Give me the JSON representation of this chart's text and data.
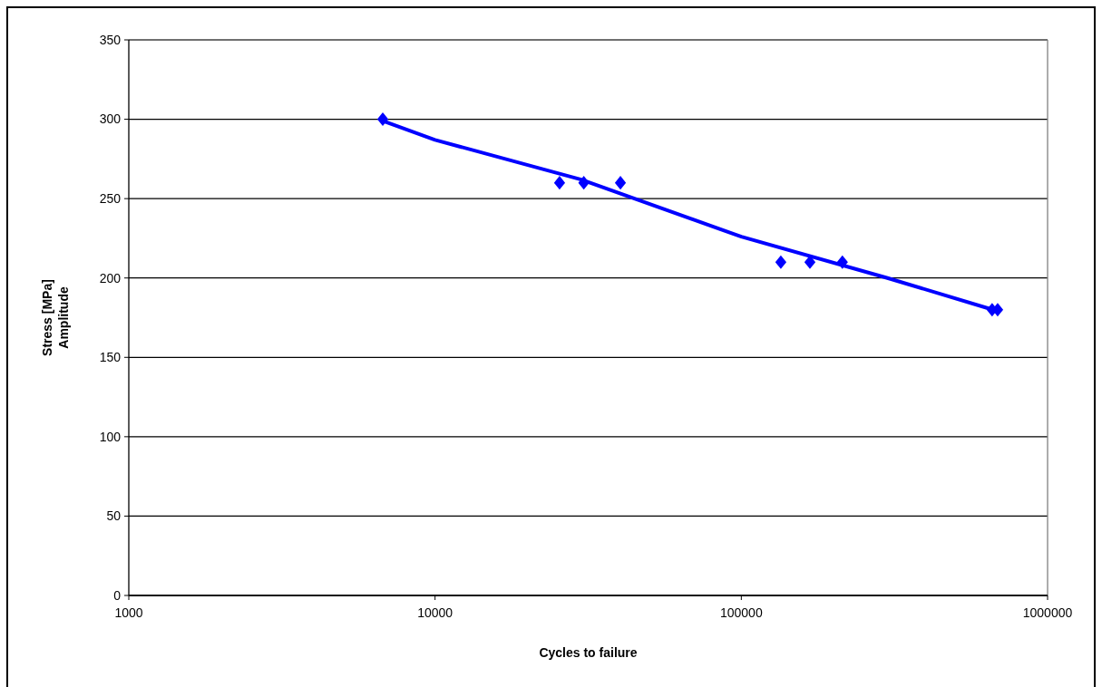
{
  "chart_data": {
    "type": "scatter",
    "xlabel": "Cycles to failure",
    "ylabel": "Stress [MPa]\nAmplitude",
    "log": "x",
    "grid": "y",
    "xlim": [
      1000,
      1000000
    ],
    "xticks": [
      1000,
      10000,
      100000,
      1000000
    ],
    "ylim": [
      0,
      350
    ],
    "yticks": [
      0,
      50,
      100,
      150,
      200,
      250,
      300,
      350
    ],
    "series": [
      {
        "color": "#0000ff",
        "marker": "diamond",
        "x": [
          6750,
          25500,
          30600,
          40300,
          134600,
          167500,
          213800,
          659000,
          687000
        ],
        "values": [
          300,
          260,
          260,
          260,
          210,
          210,
          210,
          180,
          180
        ]
      },
      {
        "type": "line",
        "color": "#0000ff",
        "line_style": "solid",
        "marker": "none",
        "x": [
          6750,
          10000,
          30000,
          100000,
          300000,
          690000
        ],
        "values": [
          299,
          287,
          262,
          226,
          200,
          179
        ]
      }
    ]
  }
}
